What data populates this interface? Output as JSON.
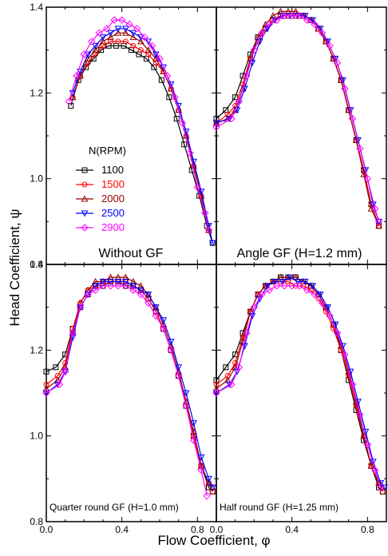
{
  "figure": {
    "xlabel": "Flow Coefficient, φ",
    "ylabel": "Head Coefficient, ψ"
  },
  "legend": {
    "title": "N(RPM)",
    "entries": [
      {
        "label": "1100",
        "color": "#000000",
        "marker": "square"
      },
      {
        "label": "1500",
        "color": "#ff0000",
        "marker": "circle"
      },
      {
        "label": "2000",
        "color": "#990000",
        "marker": "triangle-up"
      },
      {
        "label": "2500",
        "color": "#0000ff",
        "marker": "triangle-down"
      },
      {
        "label": "2900",
        "color": "#ff00ff",
        "marker": "diamond"
      }
    ]
  },
  "chart_data": [
    {
      "type": "line",
      "panel": "top-left",
      "title": "Without GF",
      "xlim": [
        0.0,
        0.9
      ],
      "ylim": [
        0.8,
        1.4
      ],
      "xticks": [
        "0.0",
        "0.4",
        "0.8"
      ],
      "yticks": [
        "0.8",
        "1.0",
        "1.2",
        "1.4"
      ],
      "series": [
        {
          "name": "1100",
          "x": [
            0.13,
            0.17,
            0.21,
            0.25,
            0.29,
            0.33,
            0.37,
            0.41,
            0.45,
            0.49,
            0.53,
            0.57,
            0.61,
            0.65,
            0.69,
            0.73,
            0.77,
            0.81,
            0.85,
            0.88
          ],
          "y": [
            1.17,
            1.23,
            1.26,
            1.28,
            1.3,
            1.31,
            1.31,
            1.31,
            1.3,
            1.29,
            1.28,
            1.26,
            1.23,
            1.19,
            1.14,
            1.08,
            1.02,
            0.96,
            0.89,
            0.85
          ]
        },
        {
          "name": "1500",
          "x": [
            0.14,
            0.18,
            0.22,
            0.26,
            0.3,
            0.34,
            0.38,
            0.42,
            0.46,
            0.5,
            0.54,
            0.58,
            0.62,
            0.66,
            0.7,
            0.74,
            0.78,
            0.82,
            0.86
          ],
          "y": [
            1.19,
            1.24,
            1.27,
            1.29,
            1.31,
            1.32,
            1.32,
            1.32,
            1.31,
            1.3,
            1.29,
            1.27,
            1.25,
            1.21,
            1.16,
            1.1,
            1.03,
            0.96,
            0.88
          ]
        },
        {
          "name": "2000",
          "x": [
            0.14,
            0.18,
            0.22,
            0.26,
            0.3,
            0.34,
            0.38,
            0.42,
            0.46,
            0.5,
            0.54,
            0.58,
            0.62,
            0.66,
            0.7,
            0.74,
            0.78,
            0.82,
            0.86
          ],
          "y": [
            1.19,
            1.24,
            1.28,
            1.3,
            1.32,
            1.33,
            1.34,
            1.34,
            1.33,
            1.32,
            1.3,
            1.28,
            1.25,
            1.21,
            1.16,
            1.1,
            1.03,
            0.96,
            0.88
          ]
        },
        {
          "name": "2500",
          "x": [
            0.14,
            0.18,
            0.22,
            0.26,
            0.3,
            0.34,
            0.38,
            0.42,
            0.46,
            0.5,
            0.54,
            0.58,
            0.62,
            0.66,
            0.7,
            0.74,
            0.78,
            0.82,
            0.86,
            0.88
          ],
          "y": [
            1.2,
            1.25,
            1.29,
            1.31,
            1.33,
            1.34,
            1.35,
            1.35,
            1.34,
            1.33,
            1.32,
            1.29,
            1.26,
            1.22,
            1.17,
            1.11,
            1.04,
            0.97,
            0.89,
            0.85
          ]
        },
        {
          "name": "2900",
          "x": [
            0.12,
            0.16,
            0.2,
            0.24,
            0.28,
            0.32,
            0.36,
            0.4,
            0.44,
            0.48,
            0.52,
            0.56,
            0.6,
            0.64,
            0.68,
            0.72,
            0.76,
            0.8,
            0.84,
            0.86
          ],
          "y": [
            1.18,
            1.24,
            1.29,
            1.32,
            1.34,
            1.35,
            1.37,
            1.37,
            1.36,
            1.35,
            1.33,
            1.31,
            1.28,
            1.24,
            1.19,
            1.13,
            1.06,
            0.98,
            0.92,
            0.88
          ]
        }
      ]
    },
    {
      "type": "line",
      "panel": "top-right",
      "title": "Angle GF (H=1.2 mm)",
      "xlim": [
        0.0,
        0.9
      ],
      "ylim": [
        0.8,
        1.4
      ],
      "xticks": [
        "0.0",
        "0.4",
        "0.8"
      ],
      "series": [
        {
          "name": "1100",
          "x": [
            0.0,
            0.05,
            0.1,
            0.14,
            0.18,
            0.22,
            0.26,
            0.3,
            0.34,
            0.38,
            0.42,
            0.46,
            0.5,
            0.54,
            0.58,
            0.62,
            0.66,
            0.7,
            0.74,
            0.78,
            0.82,
            0.86
          ],
          "y": [
            1.14,
            1.16,
            1.19,
            1.24,
            1.29,
            1.33,
            1.35,
            1.37,
            1.38,
            1.38,
            1.38,
            1.38,
            1.37,
            1.35,
            1.32,
            1.28,
            1.23,
            1.16,
            1.09,
            1.02,
            0.94,
            0.89
          ]
        },
        {
          "name": "1500",
          "x": [
            0.0,
            0.06,
            0.1,
            0.14,
            0.18,
            0.22,
            0.26,
            0.3,
            0.34,
            0.38,
            0.42,
            0.46,
            0.5,
            0.54,
            0.58,
            0.62,
            0.66,
            0.7,
            0.74,
            0.78,
            0.82,
            0.86
          ],
          "y": [
            1.13,
            1.15,
            1.17,
            1.22,
            1.28,
            1.32,
            1.35,
            1.37,
            1.38,
            1.38,
            1.38,
            1.38,
            1.37,
            1.35,
            1.32,
            1.28,
            1.23,
            1.16,
            1.09,
            1.02,
            0.94,
            0.89
          ]
        },
        {
          "name": "2000",
          "x": [
            0.0,
            0.06,
            0.1,
            0.14,
            0.18,
            0.22,
            0.26,
            0.3,
            0.34,
            0.38,
            0.42,
            0.46,
            0.5,
            0.54,
            0.58,
            0.62,
            0.66,
            0.7,
            0.74,
            0.78,
            0.82,
            0.86
          ],
          "y": [
            1.13,
            1.14,
            1.16,
            1.21,
            1.28,
            1.33,
            1.36,
            1.38,
            1.39,
            1.39,
            1.39,
            1.38,
            1.37,
            1.35,
            1.32,
            1.28,
            1.23,
            1.16,
            1.09,
            1.01,
            0.93,
            0.89
          ]
        },
        {
          "name": "2500",
          "x": [
            0.0,
            0.07,
            0.11,
            0.15,
            0.19,
            0.23,
            0.27,
            0.31,
            0.35,
            0.39,
            0.43,
            0.47,
            0.51,
            0.55,
            0.59,
            0.63,
            0.67,
            0.71,
            0.75,
            0.79,
            0.83,
            0.86
          ],
          "y": [
            1.13,
            1.14,
            1.16,
            1.21,
            1.27,
            1.32,
            1.35,
            1.37,
            1.38,
            1.38,
            1.38,
            1.38,
            1.37,
            1.35,
            1.32,
            1.28,
            1.23,
            1.16,
            1.09,
            1.02,
            0.94,
            0.9
          ]
        },
        {
          "name": "2900",
          "x": [
            0.0,
            0.08,
            0.12,
            0.16,
            0.2,
            0.24,
            0.28,
            0.32,
            0.36,
            0.4,
            0.44,
            0.48,
            0.52,
            0.56,
            0.6,
            0.64,
            0.68,
            0.72,
            0.76,
            0.8,
            0.84,
            0.86
          ],
          "y": [
            1.12,
            1.14,
            1.18,
            1.24,
            1.3,
            1.34,
            1.36,
            1.37,
            1.38,
            1.38,
            1.38,
            1.37,
            1.36,
            1.34,
            1.31,
            1.27,
            1.21,
            1.14,
            1.07,
            1.0,
            0.93,
            0.9
          ]
        }
      ]
    },
    {
      "type": "line",
      "panel": "bottom-left",
      "title": "Quarter round GF (H=1.0 mm)",
      "xlim": [
        0.0,
        0.9
      ],
      "ylim": [
        0.8,
        1.4
      ],
      "xticks": [
        "0.0",
        "0.4",
        "0.8"
      ],
      "yticks": [
        "0.8",
        "1.0",
        "1.2",
        "1.4"
      ],
      "series": [
        {
          "name": "1100",
          "x": [
            0.0,
            0.05,
            0.1,
            0.14,
            0.18,
            0.22,
            0.26,
            0.3,
            0.34,
            0.38,
            0.42,
            0.46,
            0.5,
            0.54,
            0.58,
            0.62,
            0.66,
            0.7,
            0.74,
            0.78,
            0.82,
            0.86,
            0.88
          ],
          "y": [
            1.15,
            1.16,
            1.19,
            1.25,
            1.3,
            1.33,
            1.35,
            1.35,
            1.36,
            1.36,
            1.35,
            1.35,
            1.34,
            1.32,
            1.29,
            1.25,
            1.2,
            1.14,
            1.07,
            1.0,
            0.93,
            0.88,
            0.87
          ]
        },
        {
          "name": "1500",
          "x": [
            0.0,
            0.06,
            0.1,
            0.14,
            0.18,
            0.22,
            0.26,
            0.3,
            0.34,
            0.38,
            0.42,
            0.46,
            0.5,
            0.54,
            0.58,
            0.62,
            0.66,
            0.7,
            0.74,
            0.78,
            0.82,
            0.86,
            0.88
          ],
          "y": [
            1.12,
            1.14,
            1.17,
            1.25,
            1.31,
            1.34,
            1.35,
            1.36,
            1.36,
            1.36,
            1.36,
            1.35,
            1.34,
            1.32,
            1.29,
            1.25,
            1.2,
            1.14,
            1.07,
            1.0,
            0.93,
            0.89,
            0.87
          ]
        },
        {
          "name": "2000",
          "x": [
            0.0,
            0.06,
            0.1,
            0.14,
            0.18,
            0.22,
            0.26,
            0.3,
            0.34,
            0.38,
            0.42,
            0.46,
            0.5,
            0.54,
            0.58,
            0.62,
            0.66,
            0.7,
            0.74,
            0.78,
            0.82,
            0.86,
            0.88
          ],
          "y": [
            1.11,
            1.13,
            1.16,
            1.24,
            1.31,
            1.34,
            1.36,
            1.36,
            1.37,
            1.37,
            1.37,
            1.36,
            1.35,
            1.33,
            1.3,
            1.26,
            1.21,
            1.15,
            1.08,
            1.01,
            0.93,
            0.89,
            0.88
          ]
        },
        {
          "name": "2500",
          "x": [
            0.0,
            0.06,
            0.1,
            0.14,
            0.18,
            0.22,
            0.26,
            0.3,
            0.34,
            0.38,
            0.42,
            0.46,
            0.5,
            0.54,
            0.58,
            0.62,
            0.66,
            0.7,
            0.74,
            0.78,
            0.82,
            0.86,
            0.88
          ],
          "y": [
            1.1,
            1.12,
            1.15,
            1.23,
            1.3,
            1.33,
            1.35,
            1.36,
            1.36,
            1.36,
            1.36,
            1.35,
            1.34,
            1.33,
            1.3,
            1.27,
            1.22,
            1.16,
            1.1,
            1.03,
            0.95,
            0.9,
            0.88
          ]
        },
        {
          "name": "2900",
          "x": [
            0.0,
            0.07,
            0.1,
            0.14,
            0.18,
            0.22,
            0.26,
            0.3,
            0.34,
            0.38,
            0.42,
            0.46,
            0.5,
            0.54,
            0.58,
            0.62,
            0.66,
            0.7,
            0.74,
            0.78,
            0.82,
            0.85
          ],
          "y": [
            1.1,
            1.12,
            1.15,
            1.24,
            1.3,
            1.33,
            1.34,
            1.35,
            1.35,
            1.35,
            1.35,
            1.34,
            1.33,
            1.31,
            1.28,
            1.25,
            1.2,
            1.14,
            1.07,
            0.99,
            0.92,
            0.86
          ]
        }
      ]
    },
    {
      "type": "line",
      "panel": "bottom-right",
      "title": "Half round GF (H=1.25 mm)",
      "xlim": [
        0.0,
        0.9
      ],
      "ylim": [
        0.8,
        1.4
      ],
      "xticks": [
        "0.0",
        "0.4",
        "0.8"
      ],
      "series": [
        {
          "name": "1100",
          "x": [
            0.0,
            0.05,
            0.1,
            0.14,
            0.18,
            0.22,
            0.26,
            0.3,
            0.34,
            0.38,
            0.42,
            0.46,
            0.5,
            0.54,
            0.58,
            0.62,
            0.66,
            0.7,
            0.74,
            0.78,
            0.82,
            0.86,
            0.88
          ],
          "y": [
            1.13,
            1.16,
            1.19,
            1.24,
            1.29,
            1.33,
            1.35,
            1.36,
            1.37,
            1.37,
            1.37,
            1.36,
            1.35,
            1.33,
            1.3,
            1.26,
            1.2,
            1.13,
            1.06,
            0.99,
            0.93,
            0.88,
            0.87
          ]
        },
        {
          "name": "1500",
          "x": [
            0.0,
            0.06,
            0.1,
            0.14,
            0.18,
            0.22,
            0.26,
            0.3,
            0.34,
            0.38,
            0.42,
            0.46,
            0.5,
            0.54,
            0.58,
            0.62,
            0.66,
            0.7,
            0.74,
            0.78,
            0.82,
            0.86,
            0.88
          ],
          "y": [
            1.12,
            1.14,
            1.17,
            1.23,
            1.29,
            1.33,
            1.35,
            1.36,
            1.36,
            1.36,
            1.35,
            1.35,
            1.34,
            1.32,
            1.29,
            1.25,
            1.2,
            1.14,
            1.07,
            1.0,
            0.93,
            0.89,
            0.87
          ]
        },
        {
          "name": "2000",
          "x": [
            0.0,
            0.06,
            0.1,
            0.14,
            0.18,
            0.22,
            0.26,
            0.3,
            0.34,
            0.38,
            0.42,
            0.46,
            0.5,
            0.54,
            0.58,
            0.62,
            0.66,
            0.7,
            0.74,
            0.78,
            0.82,
            0.86,
            0.88
          ],
          "y": [
            1.11,
            1.13,
            1.16,
            1.22,
            1.29,
            1.33,
            1.35,
            1.36,
            1.37,
            1.37,
            1.37,
            1.36,
            1.35,
            1.33,
            1.3,
            1.26,
            1.21,
            1.15,
            1.08,
            1.0,
            0.93,
            0.89,
            0.88
          ]
        },
        {
          "name": "2500",
          "x": [
            0.0,
            0.07,
            0.11,
            0.15,
            0.19,
            0.23,
            0.27,
            0.31,
            0.35,
            0.39,
            0.43,
            0.47,
            0.51,
            0.55,
            0.59,
            0.63,
            0.67,
            0.71,
            0.75,
            0.79,
            0.83,
            0.87,
            0.89
          ],
          "y": [
            1.1,
            1.12,
            1.15,
            1.21,
            1.28,
            1.32,
            1.35,
            1.36,
            1.36,
            1.37,
            1.36,
            1.36,
            1.35,
            1.33,
            1.3,
            1.26,
            1.21,
            1.15,
            1.08,
            1.01,
            0.94,
            0.89,
            0.88
          ]
        },
        {
          "name": "2900",
          "x": [
            0.0,
            0.08,
            0.12,
            0.16,
            0.2,
            0.24,
            0.28,
            0.32,
            0.36,
            0.4,
            0.44,
            0.48,
            0.52,
            0.56,
            0.6,
            0.64,
            0.68,
            0.72,
            0.76,
            0.8,
            0.84,
            0.87
          ],
          "y": [
            1.1,
            1.12,
            1.16,
            1.24,
            1.3,
            1.33,
            1.34,
            1.35,
            1.35,
            1.35,
            1.35,
            1.34,
            1.33,
            1.31,
            1.28,
            1.24,
            1.19,
            1.12,
            1.05,
            0.98,
            0.92,
            0.88
          ]
        }
      ]
    }
  ]
}
